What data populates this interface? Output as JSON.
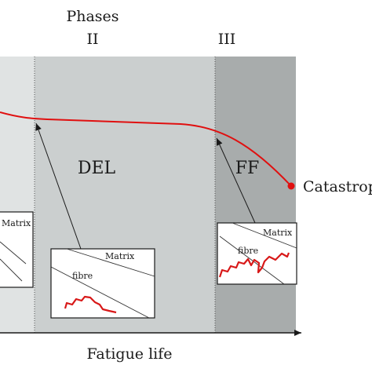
{
  "header": {
    "title": "Phases",
    "phase_ii": "II",
    "phase_iii": "III"
  },
  "regions": {
    "del_label": "DEL",
    "ff_label": "FF",
    "end_label": "Catastrop"
  },
  "insets": {
    "left": {
      "matrix_label": "Matrix"
    },
    "middle": {
      "matrix_label": "Matrix",
      "fibre_label": "fibre"
    },
    "right": {
      "matrix_label": "Matrix",
      "fibre_label": "fibre"
    }
  },
  "axis": {
    "x_label": "Fatigue life"
  },
  "colors": {
    "phase1_fill": "#e0e3e3",
    "phase2_fill": "#cbcfcf",
    "phase3_fill": "#a8acac",
    "curve": "#e01010",
    "crack": "#d81818",
    "ink": "#1a1a1a"
  }
}
